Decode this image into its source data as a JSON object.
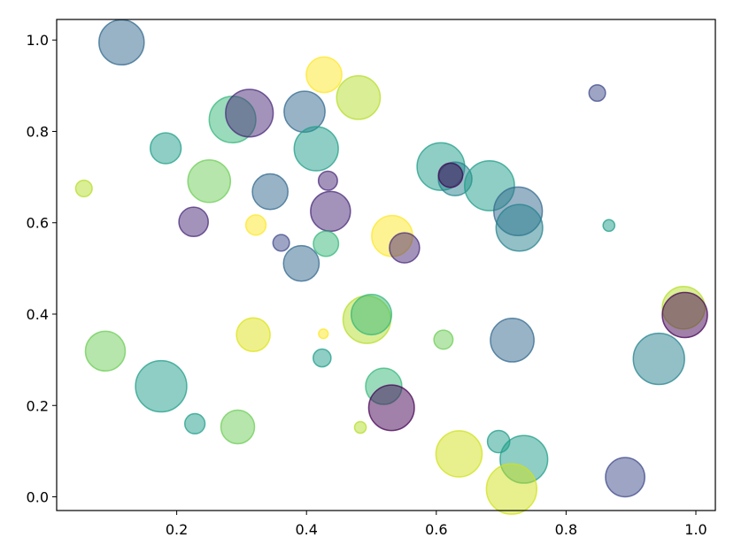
{
  "chart_data": {
    "type": "scatter",
    "title": "",
    "xlabel": "",
    "ylabel": "",
    "xlim": [
      0.015,
      1.03
    ],
    "ylim": [
      -0.03,
      1.045
    ],
    "xticks": [
      {
        "value": 0.2,
        "label": "0.2"
      },
      {
        "value": 0.4,
        "label": "0.4"
      },
      {
        "value": 0.6,
        "label": "0.6"
      },
      {
        "value": 0.8,
        "label": "0.8"
      },
      {
        "value": 1.0,
        "label": "1.0"
      }
    ],
    "yticks": [
      {
        "value": 0.0,
        "label": "0.0"
      },
      {
        "value": 0.2,
        "label": "0.2"
      },
      {
        "value": 0.4,
        "label": "0.4"
      },
      {
        "value": 0.6,
        "label": "0.6"
      },
      {
        "value": 0.8,
        "label": "0.8"
      },
      {
        "value": 1.0,
        "label": "1.0"
      }
    ],
    "grid": false,
    "colormap": "viridis",
    "alpha": 0.5,
    "points": [
      {
        "x": 0.115,
        "y": 0.995,
        "size": 0.45,
        "color": "#31688e"
      },
      {
        "x": 0.427,
        "y": 0.924,
        "size": 0.28,
        "color": "#fde725"
      },
      {
        "x": 0.48,
        "y": 0.874,
        "size": 0.42,
        "color": "#b5de2b"
      },
      {
        "x": 0.848,
        "y": 0.884,
        "size": 0.06,
        "color": "#3e4989"
      },
      {
        "x": 0.286,
        "y": 0.826,
        "size": 0.48,
        "color": "#35b779"
      },
      {
        "x": 0.312,
        "y": 0.84,
        "size": 0.5,
        "color": "#482878"
      },
      {
        "x": 0.397,
        "y": 0.843,
        "size": 0.37,
        "color": "#31688e"
      },
      {
        "x": 0.183,
        "y": 0.763,
        "size": 0.21,
        "color": "#1f9e89"
      },
      {
        "x": 0.415,
        "y": 0.762,
        "size": 0.43,
        "color": "#1f9e89"
      },
      {
        "x": 0.25,
        "y": 0.691,
        "size": 0.4,
        "color": "#6ece58"
      },
      {
        "x": 0.344,
        "y": 0.668,
        "size": 0.28,
        "color": "#31688e"
      },
      {
        "x": 0.433,
        "y": 0.692,
        "size": 0.08,
        "color": "#482878"
      },
      {
        "x": 0.607,
        "y": 0.723,
        "size": 0.5,
        "color": "#1f9e89"
      },
      {
        "x": 0.629,
        "y": 0.696,
        "size": 0.25,
        "color": "#26828e"
      },
      {
        "x": 0.622,
        "y": 0.704,
        "size": 0.13,
        "color": "#440154"
      },
      {
        "x": 0.682,
        "y": 0.681,
        "size": 0.55,
        "color": "#1f9e89"
      },
      {
        "x": 0.726,
        "y": 0.625,
        "size": 0.52,
        "color": "#31688e"
      },
      {
        "x": 0.728,
        "y": 0.589,
        "size": 0.48,
        "color": "#26828e"
      },
      {
        "x": 0.057,
        "y": 0.675,
        "size": 0.06,
        "color": "#b5de2b"
      },
      {
        "x": 0.226,
        "y": 0.602,
        "size": 0.19,
        "color": "#482878"
      },
      {
        "x": 0.322,
        "y": 0.595,
        "size": 0.09,
        "color": "#fde725"
      },
      {
        "x": 0.361,
        "y": 0.556,
        "size": 0.06,
        "color": "#3e4989"
      },
      {
        "x": 0.437,
        "y": 0.625,
        "size": 0.35,
        "color": "#482878"
      },
      {
        "x": 0.43,
        "y": 0.554,
        "size": 0.14,
        "color": "#35b779"
      },
      {
        "x": 0.532,
        "y": 0.571,
        "size": 0.37,
        "color": "#fde725"
      },
      {
        "x": 0.551,
        "y": 0.545,
        "size": 0.2,
        "color": "#482878"
      },
      {
        "x": 0.866,
        "y": 0.594,
        "size": 0.03,
        "color": "#1f9e89"
      },
      {
        "x": 0.392,
        "y": 0.511,
        "size": 0.28,
        "color": "#31688e"
      },
      {
        "x": 0.493,
        "y": 0.388,
        "size": 0.5,
        "color": "#b5de2b"
      },
      {
        "x": 0.5,
        "y": 0.399,
        "size": 0.36,
        "color": "#35b779"
      },
      {
        "x": 0.981,
        "y": 0.414,
        "size": 0.4,
        "color": "#b5de2b"
      },
      {
        "x": 0.983,
        "y": 0.398,
        "size": 0.45,
        "color": "#440154"
      },
      {
        "x": 0.09,
        "y": 0.319,
        "size": 0.35,
        "color": "#6ece58"
      },
      {
        "x": 0.318,
        "y": 0.355,
        "size": 0.25,
        "color": "#dde318"
      },
      {
        "x": 0.426,
        "y": 0.357,
        "size": 0.02,
        "color": "#fde725"
      },
      {
        "x": 0.611,
        "y": 0.344,
        "size": 0.08,
        "color": "#6ece58"
      },
      {
        "x": 0.717,
        "y": 0.343,
        "size": 0.42,
        "color": "#31688e"
      },
      {
        "x": 0.943,
        "y": 0.302,
        "size": 0.58,
        "color": "#26828e"
      },
      {
        "x": 0.176,
        "y": 0.242,
        "size": 0.58,
        "color": "#1f9e89"
      },
      {
        "x": 0.424,
        "y": 0.304,
        "size": 0.07,
        "color": "#1f9e89"
      },
      {
        "x": 0.519,
        "y": 0.242,
        "size": 0.29,
        "color": "#35b779"
      },
      {
        "x": 0.531,
        "y": 0.195,
        "size": 0.46,
        "color": "#440154"
      },
      {
        "x": 0.228,
        "y": 0.16,
        "size": 0.09,
        "color": "#1f9e89"
      },
      {
        "x": 0.294,
        "y": 0.153,
        "size": 0.25,
        "color": "#6ece58"
      },
      {
        "x": 0.483,
        "y": 0.152,
        "size": 0.03,
        "color": "#b5de2b"
      },
      {
        "x": 0.696,
        "y": 0.121,
        "size": 0.11,
        "color": "#1f9e89"
      },
      {
        "x": 0.635,
        "y": 0.094,
        "size": 0.47,
        "color": "#d0e11c"
      },
      {
        "x": 0.735,
        "y": 0.082,
        "size": 0.5,
        "color": "#1f9e89"
      },
      {
        "x": 0.716,
        "y": 0.017,
        "size": 0.56,
        "color": "#d0e11c"
      },
      {
        "x": 0.891,
        "y": 0.043,
        "size": 0.34,
        "color": "#3e4989"
      }
    ]
  }
}
